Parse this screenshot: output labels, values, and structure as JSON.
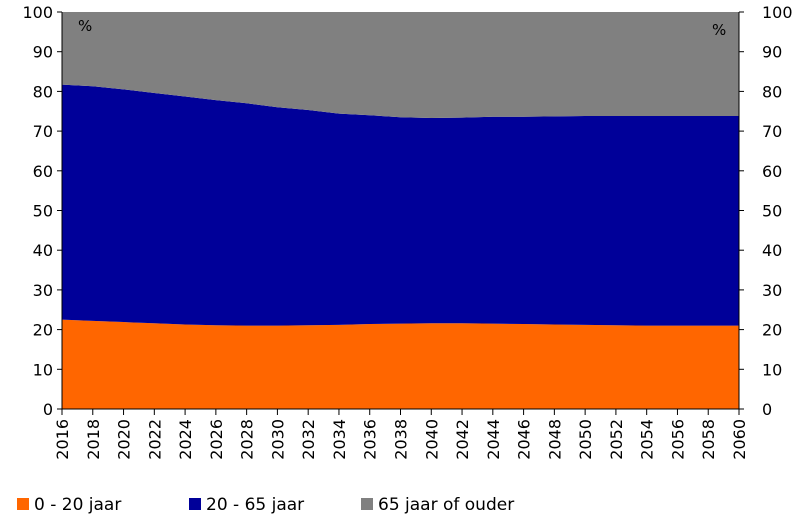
{
  "chart_data": {
    "type": "area",
    "stacked": true,
    "y_unit_left": "%",
    "y_unit_right": "%",
    "ylim": [
      0,
      100
    ],
    "yticks": [
      "0",
      "10",
      "20",
      "30",
      "40",
      "50",
      "60",
      "70",
      "80",
      "90",
      "100"
    ],
    "x": [
      2016,
      2018,
      2020,
      2022,
      2024,
      2026,
      2028,
      2030,
      2032,
      2034,
      2036,
      2038,
      2040,
      2042,
      2044,
      2046,
      2048,
      2050,
      2052,
      2054,
      2056,
      2058,
      2060
    ],
    "x_tick_labels": [
      "2016",
      "2018",
      "2020",
      "2022",
      "2024",
      "2026",
      "2028",
      "2030",
      "2032",
      "2034",
      "2036",
      "2038",
      "2040",
      "2042",
      "2044",
      "2046",
      "2048",
      "2050",
      "2052",
      "2054",
      "2056",
      "2058",
      "2060"
    ],
    "series": [
      {
        "name": "0 - 20 jaar",
        "color": "#ff6600",
        "values": [
          22.5,
          22.2,
          21.9,
          21.6,
          21.3,
          21.1,
          21.0,
          21.0,
          21.1,
          21.2,
          21.4,
          21.5,
          21.6,
          21.6,
          21.5,
          21.4,
          21.3,
          21.2,
          21.1,
          21.0,
          21.0,
          21.0,
          21.0
        ]
      },
      {
        "name": "20 - 65 jaar",
        "color": "#000099",
        "values": [
          59.2,
          59.1,
          58.6,
          58.0,
          57.4,
          56.7,
          56.0,
          55.0,
          54.2,
          53.2,
          52.6,
          52.0,
          51.7,
          51.8,
          52.1,
          52.2,
          52.4,
          52.6,
          52.7,
          52.8,
          52.8,
          52.8,
          52.8
        ]
      },
      {
        "name": "65 jaar of ouder",
        "color": "#808080",
        "values": [
          18.3,
          18.7,
          19.5,
          20.4,
          21.3,
          22.2,
          23.0,
          24.0,
          24.7,
          25.6,
          26.0,
          26.5,
          26.7,
          26.6,
          26.4,
          26.4,
          26.3,
          26.2,
          26.2,
          26.2,
          26.2,
          26.2,
          26.2
        ]
      }
    ],
    "grid": false,
    "legend_position": "bottom-left"
  }
}
